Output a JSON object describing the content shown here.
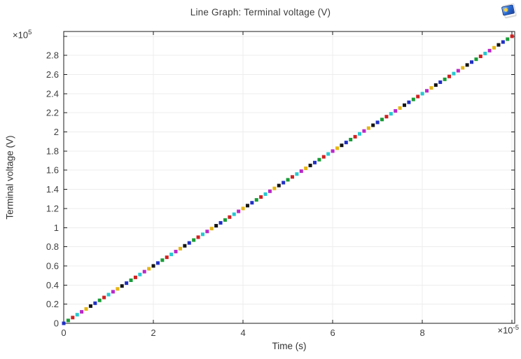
{
  "window": {
    "icon": "plot-window-icon",
    "icon_colors": {
      "screen_blue": "#2a6fd8",
      "sun_yellow": "#ffd23f",
      "sheet_white": "#fbfbfb"
    }
  },
  "chart_data": {
    "type": "scatter",
    "title": "Line Graph: Terminal voltage (V)",
    "xlabel": "Time (s)",
    "ylabel": "Terminal voltage (V)",
    "x_scale_label": {
      "prefix": "×10",
      "exponent": "-5"
    },
    "y_scale_label": {
      "prefix": "×10",
      "exponent": "5"
    },
    "x_axis_multiplier": 1e-05,
    "y_axis_multiplier": 100000.0,
    "xlim": [
      0,
      10.06
    ],
    "ylim": [
      0,
      3.05
    ],
    "xticks": {
      "labeled": [
        0,
        2,
        4,
        6,
        8
      ],
      "unlabeled": [
        10
      ]
    },
    "yticks": {
      "labeled": [
        0,
        0.2,
        0.4,
        0.6,
        0.8,
        1,
        1.2,
        1.4,
        1.6,
        1.8,
        2,
        2.2,
        2.4,
        2.6,
        2.8
      ],
      "unlabeled": [
        3
      ]
    },
    "grid": true,
    "legend": false,
    "marker": "square",
    "marker_size_px": 5,
    "grid_color": "#ececec",
    "frame_color": "#1b1b1b",
    "tick_label_color": "#404040",
    "marker_colors": [
      "#2030c4",
      "#189c38",
      "#d02020",
      "#28c8d0",
      "#b828c8",
      "#e6b616",
      "#141414"
    ],
    "series": [
      {
        "name": "Terminal voltage (V)",
        "x": [
          0,
          0.1,
          0.2,
          0.3,
          0.4,
          0.5,
          0.6,
          0.7,
          0.8,
          0.9,
          1,
          1.1,
          1.2,
          1.3,
          1.4,
          1.5,
          1.6,
          1.7,
          1.8,
          1.9,
          2,
          2.1,
          2.2,
          2.3,
          2.4,
          2.5,
          2.6,
          2.7,
          2.8,
          2.9,
          3,
          3.1,
          3.2,
          3.3,
          3.4,
          3.5,
          3.6,
          3.7,
          3.8,
          3.9,
          4,
          4.1,
          4.2,
          4.3,
          4.4,
          4.5,
          4.6,
          4.7,
          4.8,
          4.9,
          5,
          5.1,
          5.2,
          5.3,
          5.4,
          5.5,
          5.6,
          5.7,
          5.8,
          5.9,
          6,
          6.1,
          6.2,
          6.3,
          6.4,
          6.5,
          6.6,
          6.7,
          6.8,
          6.9,
          7,
          7.1,
          7.2,
          7.3,
          7.4,
          7.5,
          7.6,
          7.7,
          7.8,
          7.9,
          8,
          8.1,
          8.2,
          8.3,
          8.4,
          8.5,
          8.6,
          8.7,
          8.8,
          8.9,
          9,
          9.1,
          9.2,
          9.3,
          9.4,
          9.5,
          9.6,
          9.7,
          9.8,
          9.9,
          10
        ],
        "y": [
          0,
          0.03,
          0.06,
          0.09,
          0.12,
          0.15,
          0.18,
          0.21,
          0.24,
          0.27,
          0.3,
          0.33,
          0.36,
          0.39,
          0.42,
          0.45,
          0.48,
          0.51,
          0.54,
          0.57,
          0.6,
          0.63,
          0.66,
          0.69,
          0.72,
          0.75,
          0.78,
          0.81,
          0.84,
          0.87,
          0.9,
          0.93,
          0.96,
          0.99,
          1.02,
          1.05,
          1.08,
          1.11,
          1.14,
          1.17,
          1.2,
          1.23,
          1.26,
          1.29,
          1.32,
          1.35,
          1.38,
          1.41,
          1.44,
          1.47,
          1.5,
          1.53,
          1.56,
          1.59,
          1.62,
          1.65,
          1.68,
          1.71,
          1.74,
          1.77,
          1.8,
          1.83,
          1.86,
          1.89,
          1.92,
          1.95,
          1.98,
          2.01,
          2.04,
          2.07,
          2.1,
          2.13,
          2.16,
          2.19,
          2.22,
          2.25,
          2.28,
          2.31,
          2.34,
          2.37,
          2.4,
          2.43,
          2.46,
          2.49,
          2.52,
          2.55,
          2.58,
          2.61,
          2.64,
          2.67,
          2.7,
          2.73,
          2.76,
          2.79,
          2.82,
          2.85,
          2.88,
          2.91,
          2.94,
          2.97,
          3
        ]
      }
    ]
  }
}
